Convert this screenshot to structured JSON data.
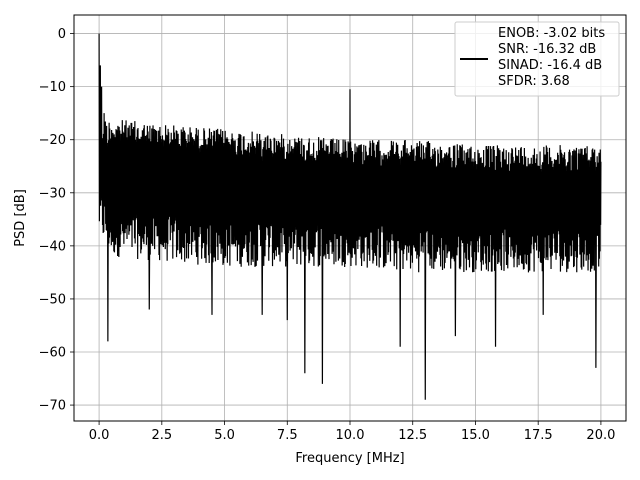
{
  "chart_data": {
    "type": "line",
    "title": "",
    "xlabel": "Frequency [MHz]",
    "ylabel": "PSD [dB]",
    "xlim": [
      -1.0,
      21.0
    ],
    "ylim": [
      -73.0,
      3.5
    ],
    "xticks": [
      0.0,
      2.5,
      5.0,
      7.5,
      10.0,
      12.5,
      15.0,
      17.5,
      20.0
    ],
    "xtick_labels": [
      "0.0",
      "2.5",
      "5.0",
      "7.5",
      "10.0",
      "12.5",
      "15.0",
      "17.5",
      "20.0"
    ],
    "yticks": [
      0,
      -10,
      -20,
      -30,
      -40,
      -50,
      -60,
      -70
    ],
    "ytick_labels": [
      "0",
      "−10",
      "−20",
      "−30",
      "−40",
      "−50",
      "−60",
      "−70"
    ],
    "grid": true,
    "legend_placement": "top-right",
    "legend_lines": [
      "ENOB: -3.02 bits",
      "SNR: -16.32 dB",
      "SINAD: -16.4 dB",
      "SFDR: 3.68"
    ],
    "series": [
      {
        "color": "#000000",
        "x_range": [
          0.0,
          20.0
        ],
        "approx_upper_envelope": {
          "x": [
            0.0,
            0.5,
            2.5,
            5.0,
            7.5,
            10.0,
            12.5,
            15.0,
            17.5,
            20.0
          ],
          "y": [
            -16,
            -16,
            -17,
            -18,
            -19,
            -20,
            -20,
            -21,
            -21,
            -21
          ]
        },
        "approx_lower_envelope": {
          "x": [
            0.0,
            0.5,
            2.5,
            5.0,
            7.5,
            10.0,
            12.5,
            15.0,
            17.5,
            20.0
          ],
          "y": [
            -38,
            -42,
            -43,
            -44,
            -44,
            -44,
            -45,
            -45,
            -45,
            -45
          ]
        },
        "notable_points": [
          {
            "x": 0.0,
            "y": 0
          },
          {
            "x": 0.05,
            "y": -6
          },
          {
            "x": 0.1,
            "y": -10
          },
          {
            "x": 0.2,
            "y": -15
          },
          {
            "x": 10.0,
            "y": -10.5
          },
          {
            "x": 0.35,
            "y": -58
          },
          {
            "x": 2.0,
            "y": -52
          },
          {
            "x": 4.5,
            "y": -53
          },
          {
            "x": 6.5,
            "y": -53
          },
          {
            "x": 7.5,
            "y": -54
          },
          {
            "x": 8.2,
            "y": -64
          },
          {
            "x": 8.9,
            "y": -66
          },
          {
            "x": 12.0,
            "y": -59
          },
          {
            "x": 13.0,
            "y": -69
          },
          {
            "x": 14.2,
            "y": -57
          },
          {
            "x": 15.8,
            "y": -59
          },
          {
            "x": 17.7,
            "y": -53
          },
          {
            "x": 19.8,
            "y": -63
          }
        ]
      }
    ]
  }
}
